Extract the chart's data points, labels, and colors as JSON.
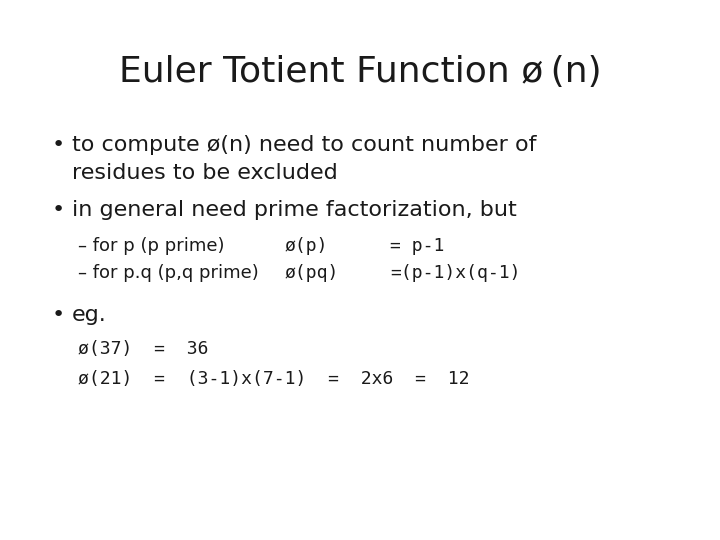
{
  "background_color": "#ffffff",
  "title": "Euler Totient Function ø (n)",
  "title_fontsize": 26,
  "title_font": "DejaVu Sans",
  "title_weight": "normal",
  "body_font": "DejaVu Sans",
  "mono_font": "DejaVu Sans Mono",
  "body_fontsize": 16,
  "sub_fontsize": 13,
  "text_color": "#1a1a1a",
  "bullet1_line1": "to compute ø(n) need to count number of",
  "bullet1_line2": "residues to be excluded",
  "bullet2": "in general need prime factorization, but",
  "dash1_left": "– for p (p prime)",
  "dash1_mid": "ø(p)",
  "dash1_right": "= p-1",
  "dash2_left": "– for p.q (p,q prime)",
  "dash2_mid": "ø(pq)",
  "dash2_right": "=(p-1)x(q-1)",
  "bullet3": "eg.",
  "eg1": "ø(37)  =  36",
  "eg2": "ø(21)  =  (3-1)x(7-1)  =  2x6  =  12"
}
